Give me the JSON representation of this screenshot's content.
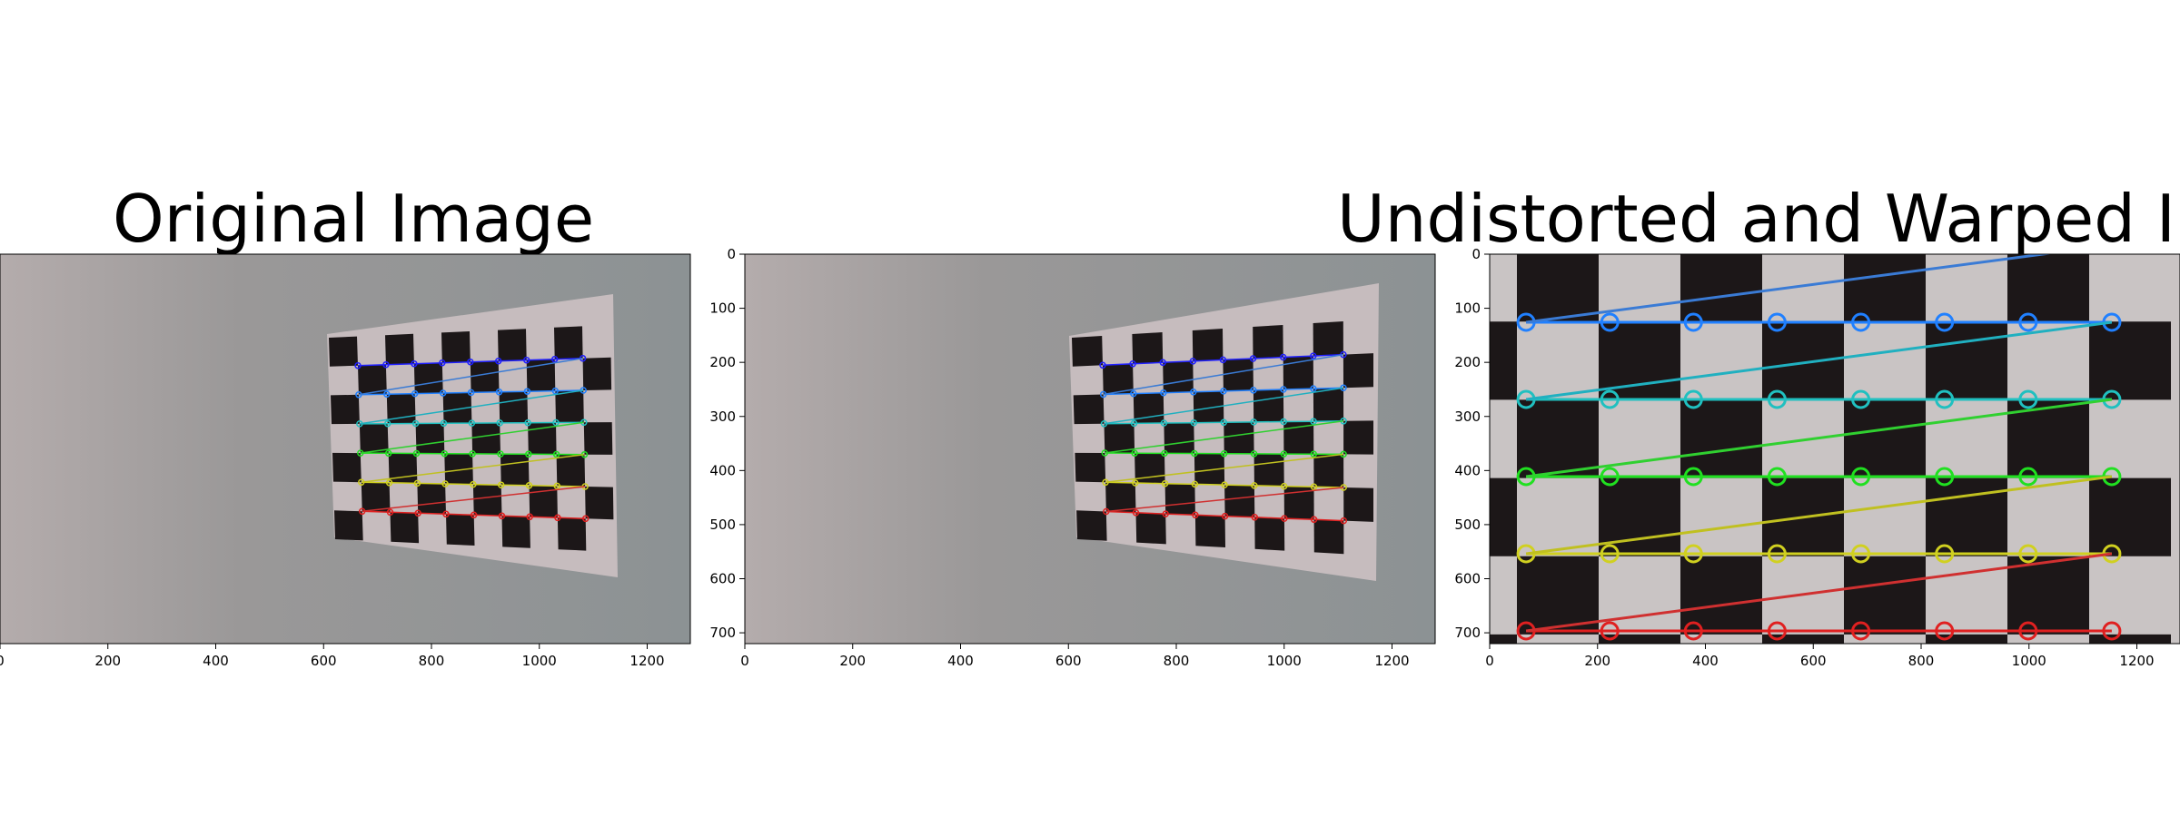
{
  "titles": {
    "left": "Original Image",
    "right": "Undistorted and Warped In"
  },
  "panels": [
    {
      "name": "original",
      "x_ticks": [
        "0",
        "200",
        "400",
        "600",
        "800",
        "1000",
        "1200"
      ],
      "y_ticks": []
    },
    {
      "name": "undistorted",
      "x_ticks": [
        "0",
        "200",
        "400",
        "600",
        "800",
        "1000",
        "1200"
      ],
      "y_ticks": [
        "0",
        "100",
        "200",
        "300",
        "400",
        "500",
        "600",
        "700"
      ]
    },
    {
      "name": "warped",
      "x_ticks": [
        "0",
        "200",
        "400",
        "600",
        "800",
        "1000",
        "1200"
      ],
      "y_ticks": [
        "0",
        "100",
        "200",
        "300",
        "400",
        "500",
        "600",
        "700"
      ]
    }
  ],
  "corner_row_colors": [
    "#2020ff",
    "#2080ff",
    "#20c0c0",
    "#20e020",
    "#d0d020",
    "#e02020"
  ],
  "connector_colors": [
    "#3a7bd5",
    "#20b0c0",
    "#30d030",
    "#c0c020",
    "#d03030"
  ]
}
